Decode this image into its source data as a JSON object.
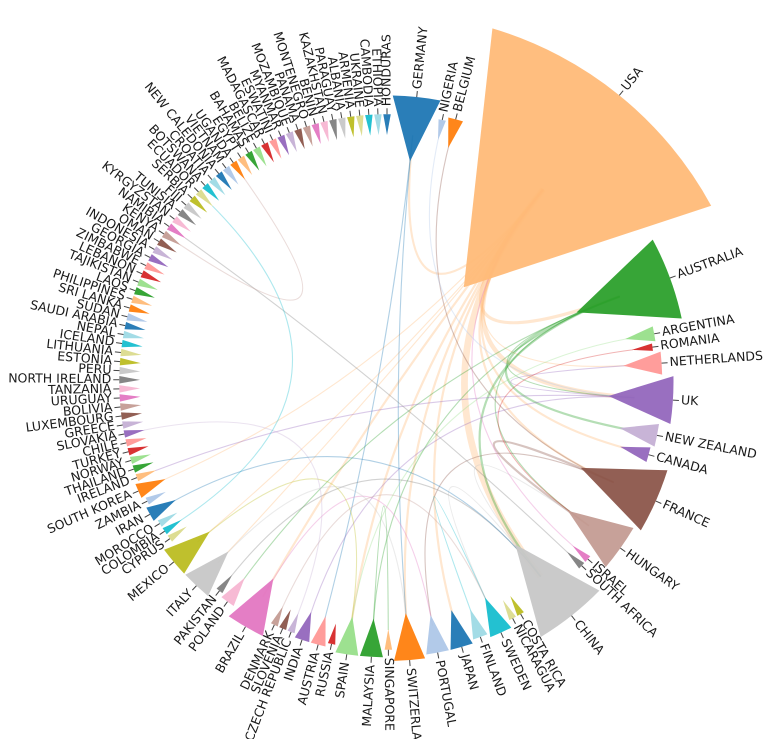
{
  "chart_data": {
    "type": "chord",
    "nodes": [
      {
        "name": "GERMANY",
        "color": "#1f77b4",
        "size": 3
      },
      {
        "name": "NIGERIA",
        "color": "#aec7e8",
        "size": 0.5
      },
      {
        "name": "BELGIUM",
        "color": "#ff7f0e",
        "size": 1
      },
      {
        "name": "USA",
        "color": "#ffbb78",
        "size": 14
      },
      {
        "name": "AUSTRALIA",
        "color": "#2ca02c",
        "size": 5
      },
      {
        "name": "ARGENTINA",
        "color": "#98df8a",
        "size": 1
      },
      {
        "name": "ROMANIA",
        "color": "#d62728",
        "size": 0.5
      },
      {
        "name": "NETHERLANDS",
        "color": "#ff9896",
        "size": 1.5
      },
      {
        "name": "UK",
        "color": "#9467bd",
        "size": 3
      },
      {
        "name": "NEW ZEALAND",
        "color": "#c5b0d5",
        "size": 1.5
      },
      {
        "name": "CANADA",
        "color": "#9467bd",
        "size": 1
      },
      {
        "name": "FRANCE",
        "color": "#8c564b",
        "size": 4
      },
      {
        "name": "HUNGARY",
        "color": "#c49c94",
        "size": 3
      },
      {
        "name": "ISRAEL",
        "color": "#e377c2",
        "size": 0.5
      },
      {
        "name": "SOUTH AFRICA",
        "color": "#7f7f7f",
        "size": 0.5
      },
      {
        "name": "CHINA",
        "color": "#c7c7c7",
        "size": 4.5
      },
      {
        "name": "COSTA RICA",
        "color": "#bcbd22",
        "size": 0.5
      },
      {
        "name": "NICARAGUA",
        "color": "#dbdb8d",
        "size": 0.5
      },
      {
        "name": "SWEDEN",
        "color": "#17becf",
        "size": 1.5
      },
      {
        "name": "FINLAND",
        "color": "#9edae5",
        "size": 1
      },
      {
        "name": "JAPAN",
        "color": "#1f77b4",
        "size": 1.5
      },
      {
        "name": "PORTUGAL",
        "color": "#aec7e8",
        "size": 1.5
      },
      {
        "name": "SWITZERLAND",
        "color": "#ff7f0e",
        "size": 2
      },
      {
        "name": "SINGAPORE",
        "color": "#ffbb78",
        "size": 0.5
      },
      {
        "name": "MALAYSIA",
        "color": "#2ca02c",
        "size": 1.5
      },
      {
        "name": "SPAIN",
        "color": "#98df8a",
        "size": 1.5
      },
      {
        "name": "RUSSIA",
        "color": "#d62728",
        "size": 0.5
      },
      {
        "name": "AUSTRIA",
        "color": "#ff9896",
        "size": 1
      },
      {
        "name": "INDIA",
        "color": "#9467bd",
        "size": 1
      },
      {
        "name": "CZECH REPUBLIC",
        "color": "#c5b0d5",
        "size": 0.5
      },
      {
        "name": "SLOVENIA",
        "color": "#8c564b",
        "size": 0.5
      },
      {
        "name": "DENMARK",
        "color": "#c49c94",
        "size": 0.5
      },
      {
        "name": "BRAZIL",
        "color": "#e377c2",
        "size": 2.5
      },
      {
        "name": "POLAND",
        "color": "#f7b6d2",
        "size": 1
      },
      {
        "name": "PAKISTAN",
        "color": "#7f7f7f",
        "size": 0.5
      },
      {
        "name": "ITALY",
        "color": "#c7c7c7",
        "size": 2
      },
      {
        "name": "MEXICO",
        "color": "#bcbd22",
        "size": 2
      },
      {
        "name": "CYPRUS",
        "color": "#dbdb8d",
        "size": 0.5
      },
      {
        "name": "COLOMBIA",
        "color": "#17becf",
        "size": 0.5
      },
      {
        "name": "MOROCCO",
        "color": "#9edae5",
        "size": 0.5
      },
      {
        "name": "IRAN",
        "color": "#1f77b4",
        "size": 1
      },
      {
        "name": "ZAMBIA",
        "color": "#aec7e8",
        "size": 0.5
      },
      {
        "name": "SOUTH KOREA",
        "color": "#ff7f0e",
        "size": 1
      },
      {
        "name": "IRELAND",
        "color": "#ffbb78",
        "size": 0.5
      },
      {
        "name": "THAILAND",
        "color": "#2ca02c",
        "size": 0.5
      },
      {
        "name": "NORWAY",
        "color": "#98df8a",
        "size": 0.5
      },
      {
        "name": "TURKEY",
        "color": "#d62728",
        "size": 0.5
      },
      {
        "name": "CHILE",
        "color": "#ff9896",
        "size": 0.5
      },
      {
        "name": "SLOVAKIA",
        "color": "#9467bd",
        "size": 0.5
      },
      {
        "name": "GREECE",
        "color": "#c5b0d5",
        "size": 0.5
      },
      {
        "name": "LUXEMBOURG",
        "color": "#8c564b",
        "size": 0.5
      },
      {
        "name": "BOLIVIA",
        "color": "#c49c94",
        "size": 0.5
      },
      {
        "name": "URUGUAY",
        "color": "#e377c2",
        "size": 0.5
      },
      {
        "name": "TANZANIA",
        "color": "#f7b6d2",
        "size": 0.5
      },
      {
        "name": "NORTH IRELAND",
        "color": "#7f7f7f",
        "size": 0.5
      },
      {
        "name": "PERU",
        "color": "#c7c7c7",
        "size": 0.5
      },
      {
        "name": "ESTONIA",
        "color": "#bcbd22",
        "size": 0.5
      },
      {
        "name": "LITHUANIA",
        "color": "#dbdb8d",
        "size": 0.5
      },
      {
        "name": "ICELAND",
        "color": "#17becf",
        "size": 0.5
      },
      {
        "name": "NEPAL",
        "color": "#9edae5",
        "size": 0.5
      },
      {
        "name": "SAUDI ARABIA",
        "color": "#1f77b4",
        "size": 0.5
      },
      {
        "name": "SUDAN",
        "color": "#aec7e8",
        "size": 0.5
      },
      {
        "name": "SRI LANKA",
        "color": "#ff7f0e",
        "size": 0.5
      },
      {
        "name": "PHILIPPINES",
        "color": "#ffbb78",
        "size": 0.5
      },
      {
        "name": "LAOS",
        "color": "#2ca02c",
        "size": 0.5
      },
      {
        "name": "TAJIKISTAN",
        "color": "#98df8a",
        "size": 0.5
      },
      {
        "name": "LEBANON",
        "color": "#d62728",
        "size": 0.5
      },
      {
        "name": "ZIMBABWE",
        "color": "#ff9896",
        "size": 0.5
      },
      {
        "name": "GEORGIA",
        "color": "#9467bd",
        "size": 0.5
      },
      {
        "name": "INDONESIA",
        "color": "#c5b0d5",
        "size": 0.5
      },
      {
        "name": "OMAN",
        "color": "#8c564b",
        "size": 0.5
      },
      {
        "name": "KENYA",
        "color": "#c49c94",
        "size": 0.5
      },
      {
        "name": "NAMIBIA",
        "color": "#e377c2",
        "size": 0.5
      },
      {
        "name": "KYRGYZSTAN",
        "color": "#f7b6d2",
        "size": 0.5
      },
      {
        "name": "TUNISIA",
        "color": "#7f7f7f",
        "size": 0.5
      },
      {
        "name": "FIJI",
        "color": "#c7c7c7",
        "size": 0.5
      },
      {
        "name": "SERBIA",
        "color": "#bcbd22",
        "size": 0.5
      },
      {
        "name": "ECUADOR",
        "color": "#dbdb8d",
        "size": 0.5
      },
      {
        "name": "BOTSWANA",
        "color": "#17becf",
        "size": 0.5
      },
      {
        "name": "CROATIA",
        "color": "#9edae5",
        "size": 0.5
      },
      {
        "name": "NEW CALEDONIA",
        "color": "#1f77b4",
        "size": 0.5
      },
      {
        "name": "VIETNAM",
        "color": "#aec7e8",
        "size": 0.5
      },
      {
        "name": "UGANDA",
        "color": "#ff7f0e",
        "size": 0.5
      },
      {
        "name": "EGYPT",
        "color": "#ffbb78",
        "size": 0.5
      },
      {
        "name": "BAHAMAS",
        "color": "#2ca02c",
        "size": 0.5
      },
      {
        "name": "BELIZE",
        "color": "#98df8a",
        "size": 0.5
      },
      {
        "name": "MADAGASCAR",
        "color": "#d62728",
        "size": 0.5
      },
      {
        "name": "ESWATINI",
        "color": "#ff9896",
        "size": 0.5
      },
      {
        "name": "MYANMAR",
        "color": "#9467bd",
        "size": 0.5
      },
      {
        "name": "MOZAMBIQUE",
        "color": "#c5b0d5",
        "size": 0.5
      },
      {
        "name": "PANAMA",
        "color": "#8c564b",
        "size": 0.5
      },
      {
        "name": "MONTENEGRO",
        "color": "#c49c94",
        "size": 0.5
      },
      {
        "name": "BENIN",
        "color": "#e377c2",
        "size": 0.5
      },
      {
        "name": "KAZAKHSTAN",
        "color": "#f7b6d2",
        "size": 0.5
      },
      {
        "name": "PARAGUAY",
        "color": "#7f7f7f",
        "size": 0.5
      },
      {
        "name": "ALBANIA",
        "color": "#c7c7c7",
        "size": 0.5
      },
      {
        "name": "ARMENIA",
        "color": "#bcbd22",
        "size": 0.5
      },
      {
        "name": "UKRAINE",
        "color": "#dbdb8d",
        "size": 0.5
      },
      {
        "name": "CAMBODIA",
        "color": "#17becf",
        "size": 0.5
      },
      {
        "name": "ETHIOPIA",
        "color": "#9edae5",
        "size": 0.5
      },
      {
        "name": "HONDURAS",
        "color": "#1f77b4",
        "size": 0.5
      }
    ],
    "links": [
      {
        "source": "USA",
        "target": "CHINA",
        "value": 3
      },
      {
        "source": "USA",
        "target": "UK",
        "value": 2
      },
      {
        "source": "USA",
        "target": "CANADA",
        "value": 1
      },
      {
        "source": "USA",
        "target": "AUSTRALIA",
        "value": 1.5
      },
      {
        "source": "USA",
        "target": "FRANCE",
        "value": 1
      },
      {
        "source": "USA",
        "target": "BRAZIL",
        "value": 1
      },
      {
        "source": "USA",
        "target": "JAPAN",
        "value": 1
      },
      {
        "source": "USA",
        "target": "SPAIN",
        "value": 1
      },
      {
        "source": "USA",
        "target": "GERMANY",
        "value": 1
      },
      {
        "source": "USA",
        "target": "ITALY",
        "value": 0.5
      },
      {
        "source": "USA",
        "target": "MEXICO",
        "value": 0.5
      },
      {
        "source": "USA",
        "target": "SOUTH KOREA",
        "value": 0.5
      },
      {
        "source": "USA",
        "target": "SWITZERLAND",
        "value": 1
      },
      {
        "source": "USA",
        "target": "NETHERLANDS",
        "value": 0.5
      },
      {
        "source": "AUSTRALIA",
        "target": "CHINA",
        "value": 1
      },
      {
        "source": "AUSTRALIA",
        "target": "NEW ZEALAND",
        "value": 1
      },
      {
        "source": "AUSTRALIA",
        "target": "UK",
        "value": 0.5
      },
      {
        "source": "AUSTRALIA",
        "target": "HUNGARY",
        "value": 0.5
      },
      {
        "source": "AUSTRALIA",
        "target": "MALAYSIA",
        "value": 0.5
      },
      {
        "source": "AUSTRALIA",
        "target": "POLAND",
        "value": 0.5
      },
      {
        "source": "FRANCE",
        "target": "HUNGARY",
        "value": 1
      },
      {
        "source": "FRANCE",
        "target": "BELGIUM",
        "value": 0.5
      },
      {
        "source": "FRANCE",
        "target": "PORTUGAL",
        "value": 0.5
      },
      {
        "source": "CHINA",
        "target": "HUNGARY",
        "value": 0.5
      },
      {
        "source": "CHINA",
        "target": "SWEDEN",
        "value": 0.5
      },
      {
        "source": "UK",
        "target": "NETHERLANDS",
        "value": 0.5
      },
      {
        "source": "UK",
        "target": "IRELAND",
        "value": 0.5
      },
      {
        "source": "GERMANY",
        "target": "AUSTRIA",
        "value": 0.5
      },
      {
        "source": "GERMANY",
        "target": "SWITZERLAND",
        "value": 0.5
      },
      {
        "source": "ARGENTINA",
        "target": "SPAIN",
        "value": 0.5
      },
      {
        "source": "BRAZIL",
        "target": "PORTUGAL",
        "value": 0.5
      },
      {
        "source": "INDIA",
        "target": "UK",
        "value": 0.5
      },
      {
        "source": "PAKISTAN",
        "target": "CHINA",
        "value": 0.5
      },
      {
        "source": "MEXICO",
        "target": "SPAIN",
        "value": 0.5
      },
      {
        "source": "ITALY",
        "target": "SWITZERLAND",
        "value": 0.5
      },
      {
        "source": "SWEDEN",
        "target": "FINLAND",
        "value": 0.5
      },
      {
        "source": "DENMARK",
        "target": "SWEDEN",
        "value": 0.5
      },
      {
        "source": "CZECH REPUBLIC",
        "target": "SLOVAKIA",
        "value": 0.5
      },
      {
        "source": "ROMANIA",
        "target": "HUNGARY",
        "value": 0.5
      },
      {
        "source": "MALAYSIA",
        "target": "SINGAPORE",
        "value": 0.5
      },
      {
        "source": "ISRAEL",
        "target": "USA",
        "value": 0.5
      },
      {
        "source": "SOUTH AFRICA",
        "target": "NAMIBIA",
        "value": 0.5
      },
      {
        "source": "KENYA",
        "target": "UGANDA",
        "value": 0.5
      },
      {
        "source": "COLOMBIA",
        "target": "ECUADOR",
        "value": 0.5
      },
      {
        "source": "NIGERIA",
        "target": "UK",
        "value": 0.5
      },
      {
        "source": "IRAN",
        "target": "CHINA",
        "value": 0.5
      }
    ]
  }
}
